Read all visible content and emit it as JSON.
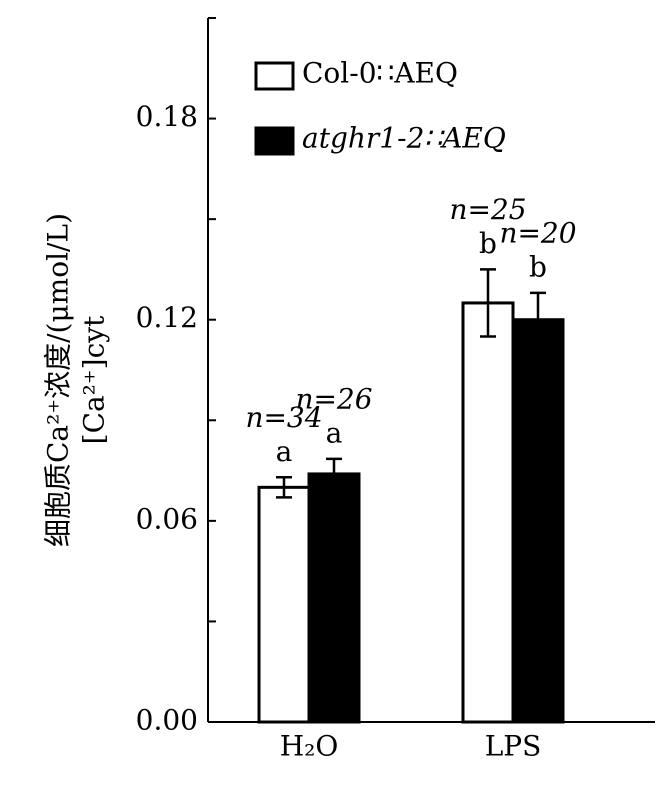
{
  "chart_data": {
    "type": "bar",
    "y_label": [
      "细胞质Ca²⁺浓度/(μmol/L)",
      "[Ca²⁺]cyt"
    ],
    "categories": [
      "H₂O",
      "LPS"
    ],
    "series": [
      {
        "name": "Col-0∷AEQ",
        "color": "#ffffff",
        "values": [
          0.07,
          0.125
        ],
        "errors": [
          0.003,
          0.01
        ],
        "n_labels": [
          "n=34",
          "n=25"
        ],
        "letters": [
          "a",
          "b"
        ]
      },
      {
        "name": "atghr1-2∷AEQ",
        "color": "#000000",
        "values": [
          0.074,
          0.12
        ],
        "errors": [
          0.0045,
          0.008
        ],
        "n_labels": [
          "n=26",
          "n=20"
        ],
        "letters": [
          "a",
          "b"
        ]
      }
    ],
    "ylim": [
      0,
      0.21
    ],
    "yticks": [
      {
        "value": 0,
        "label": "0.00"
      },
      0.06,
      0.12,
      0.18
    ],
    "minor_yticks": [
      0.03,
      0.09,
      0.15,
      0.21
    ]
  }
}
